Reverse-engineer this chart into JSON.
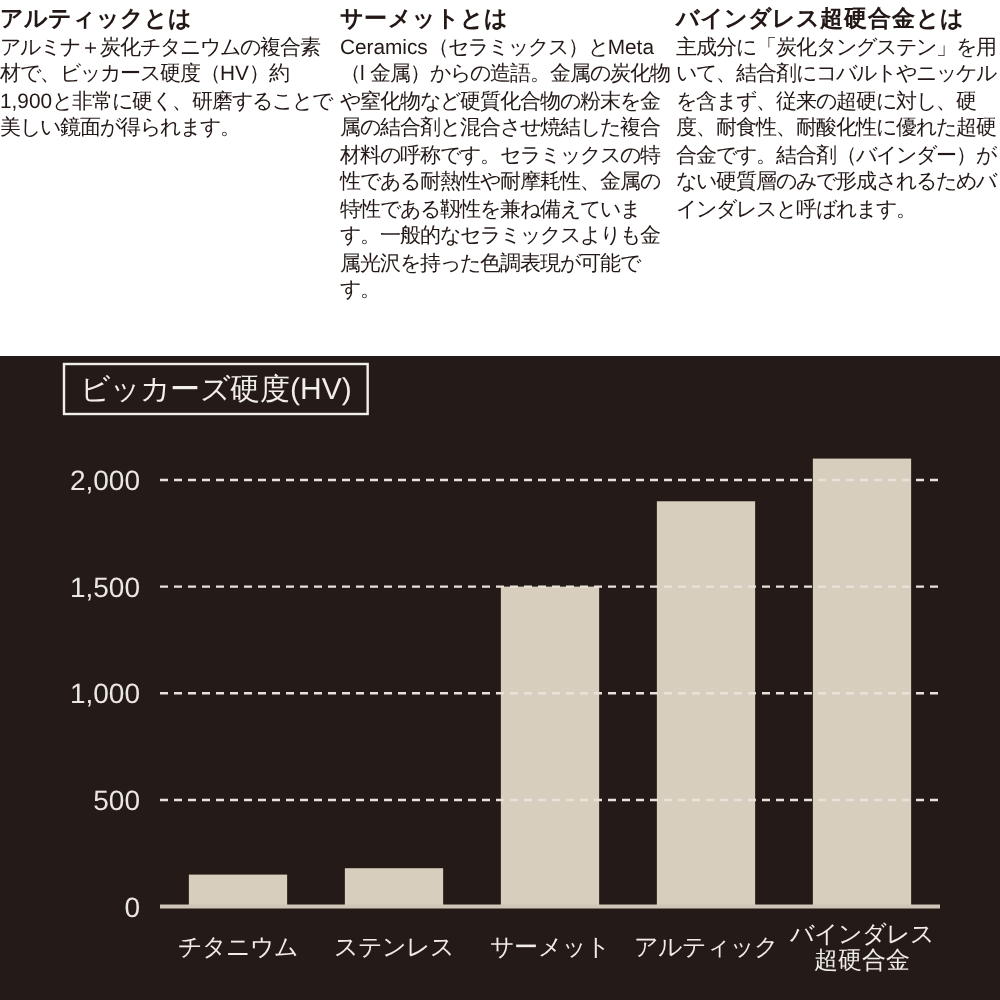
{
  "chart_data": {
    "type": "bar",
    "title": "ビッカーズ硬度(HV)",
    "annotations": [
      "アルティックとは",
      "アルミナ＋炭化チタニウムの複合素材で、ビッカース硬度（HV）約1,900と非常に硬く、研磨することで美しい鏡面が得られます。",
      "サーメットとは",
      "Ceramics（セラミックス）とMeta（l 金属）からの造語。金属の炭化物や窒化物など硬質化合物の粉末を金属の結合剤と混合させ焼結した複合材料の呼称です。セラミックスの特性である耐熱性や耐摩耗性、金属の特性である靱性を兼ね備えています。一般的なセラミックスよりも金属光沢を持った色調表現が可能です。",
      "バインダレス超硬合金とは",
      "主成分に「炭化タングステン」を用いて、結合剤にコバルトやニッケルを含まず、従来の超硬に対し、硬度、耐食性、耐酸化性に優れた超硬合金です。結合剤（バインダー）がない硬質層のみで形成されるためバインダレスと呼ばれます。"
    ],
    "categories": [
      "チタニウム",
      "ステンレス",
      "サーメット",
      "アルティック",
      "バインダレス超硬合金"
    ],
    "values": [
      150,
      180,
      1500,
      1900,
      2100
    ],
    "color": "#d8cebd",
    "ylim": [
      0,
      2100
    ],
    "yticks": [
      0,
      500,
      {
        "value": 1000,
        "label": "1,000"
      },
      {
        "value": 1500,
        "label": "1,500"
      },
      {
        "value": 2000,
        "label": "2,000"
      }
    ],
    "grid": "y"
  }
}
